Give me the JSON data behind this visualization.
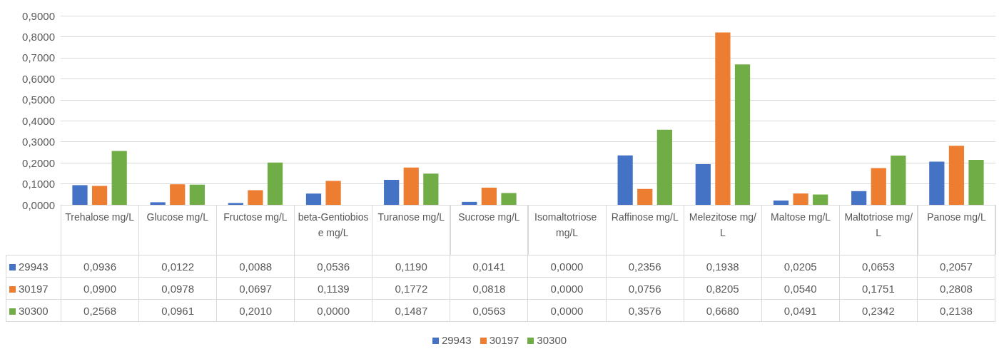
{
  "chart_data": {
    "type": "bar",
    "categories": [
      "Trehalose mg/L",
      "Glucose mg/L",
      "Fructose mg/L",
      "beta-Gentiobiose mg/L",
      "Turanose mg/L",
      "Sucrose mg/L",
      "Isomaltotriose mg/L",
      "Raffinose mg/L",
      "Melezitose mg/L",
      "Maltose mg/L",
      "Maltotriose mg/L",
      "Panose mg/L"
    ],
    "series": [
      {
        "name": "29943",
        "color": "#4472c4",
        "values": [
          0.0936,
          0.0122,
          0.0088,
          0.0536,
          0.119,
          0.0141,
          0.0,
          0.2356,
          0.1938,
          0.0205,
          0.0653,
          0.2057
        ],
        "value_labels": [
          "0,0936",
          "0,0122",
          "0,0088",
          "0,0536",
          "0,1190",
          "0,0141",
          "0,0000",
          "0,2356",
          "0,1938",
          "0,0205",
          "0,0653",
          "0,2057"
        ]
      },
      {
        "name": "30197",
        "color": "#ed7d31",
        "values": [
          0.09,
          0.0978,
          0.0697,
          0.1139,
          0.1772,
          0.0818,
          0.0,
          0.0756,
          0.8205,
          0.054,
          0.1751,
          0.2808
        ],
        "value_labels": [
          "0,0900",
          "0,0978",
          "0,0697",
          "0,1139",
          "0,1772",
          "0,0818",
          "0,0000",
          "0,0756",
          "0,8205",
          "0,0540",
          "0,1751",
          "0,2808"
        ]
      },
      {
        "name": "30300",
        "color": "#70ad47",
        "values": [
          0.2568,
          0.0961,
          0.201,
          0.0,
          0.1487,
          0.0563,
          0.0,
          0.3576,
          0.668,
          0.0491,
          0.2342,
          0.2138
        ],
        "value_labels": [
          "0,2568",
          "0,0961",
          "0,2010",
          "0,0000",
          "0,1487",
          "0,0563",
          "0,0000",
          "0,3576",
          "0,6680",
          "0,0491",
          "0,2342",
          "0,2138"
        ]
      }
    ],
    "ylim": [
      0,
      0.9
    ],
    "yticks": [
      {
        "value": 0,
        "label": "0,0000"
      },
      {
        "value": 0.1,
        "label": "0,1000"
      },
      {
        "value": 0.2,
        "label": "0,2000"
      },
      {
        "value": 0.3,
        "label": "0,3000"
      },
      {
        "value": 0.4,
        "label": "0,4000"
      },
      {
        "value": 0.5,
        "label": "0,5000"
      },
      {
        "value": 0.6,
        "label": "0,6000"
      },
      {
        "value": 0.7,
        "label": "0,7000"
      },
      {
        "value": 0.8,
        "label": "0,8000"
      },
      {
        "value": 0.9,
        "label": "0,9000"
      }
    ],
    "grid": "y",
    "legend": "bottom"
  }
}
